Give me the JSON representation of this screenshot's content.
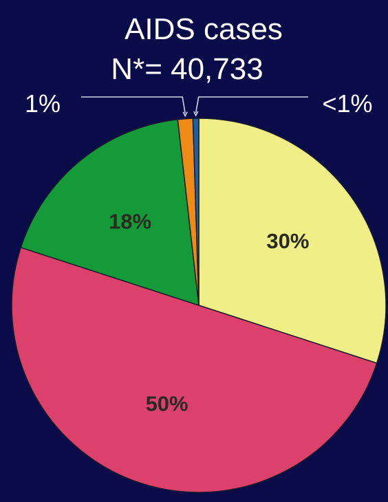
{
  "chart_data": {
    "type": "pie",
    "title": "AIDS cases",
    "subtitle": "N*= 40,733",
    "slices": [
      {
        "label": "30%",
        "value": 30.0,
        "color": "#f0ee86"
      },
      {
        "label": "50%",
        "value": 50.0,
        "color": "#dc416c"
      },
      {
        "label": "18%",
        "value": 18.2,
        "color": "#159a3a"
      },
      {
        "label": "1%",
        "value": 1.3,
        "color": "#ee8a16"
      },
      {
        "label": "<1%",
        "value": 0.5,
        "color": "#1f5fa6"
      }
    ],
    "start_angle_deg": 0,
    "direction": "clockwise",
    "background": "#0a0c4a"
  }
}
